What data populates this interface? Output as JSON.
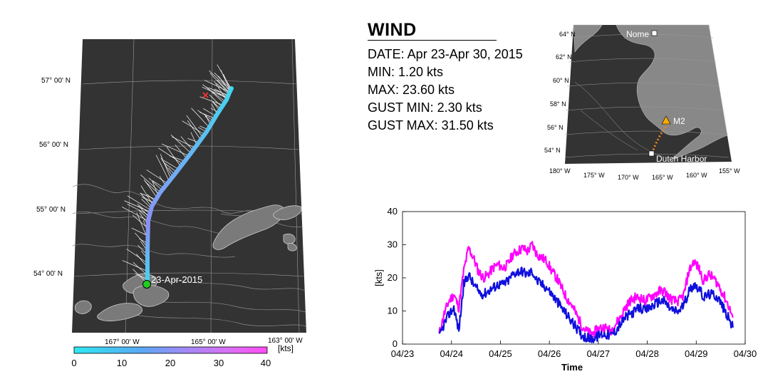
{
  "panel": {
    "title": "WIND",
    "lines": [
      "DATE: Apr 23-Apr 30, 2015",
      "MIN: 1.20 kts",
      "MAX: 23.60 kts",
      "GUST MIN: 2.30 kts",
      "GUST MAX: 31.50 kts"
    ]
  },
  "map": {
    "lat_labels": [
      "57° 00' N",
      "56° 00' N",
      "55° 00' N",
      "54° 00' N"
    ],
    "lon_labels": [
      "167° 00' W",
      "165° 00' W",
      "163° 00' W"
    ],
    "start_label": "23-Apr-2015",
    "colorbar": {
      "ticks": [
        "0",
        "10",
        "20",
        "30",
        "40"
      ],
      "unit": "[kts]",
      "min": 0,
      "max": 40
    },
    "colors": {
      "land": "#7a7a7a",
      "water": "#333333",
      "start_marker": "#22cc22",
      "end_marker": "#ff3333"
    }
  },
  "inset": {
    "lat_labels": [
      "64° N",
      "62° N",
      "60° N",
      "58° N",
      "56° N",
      "54° N"
    ],
    "lon_labels": [
      "180° W",
      "175° W",
      "170° W",
      "165° W",
      "160° W",
      "155° W"
    ],
    "places": {
      "nome": "Nome",
      "m2": "M2",
      "dutch": "Dutch Harbor"
    },
    "colors": {
      "land": "#888888",
      "water": "#333333",
      "track": "#e8821e",
      "m2_marker": "#ffaa00"
    }
  },
  "chart_data": {
    "type": "line",
    "xlabel": "Time",
    "ylabel": "[kts]",
    "x_ticks": [
      "04/23",
      "04/24",
      "04/25",
      "04/26",
      "04/27",
      "04/28",
      "04/29",
      "04/30"
    ],
    "y_ticks": [
      "0",
      "10",
      "20",
      "30",
      "40"
    ],
    "xlim": [
      0,
      7
    ],
    "ylim": [
      0,
      40
    ],
    "series": [
      {
        "color": "#ff00ff",
        "x": [
          0.75,
          0.85,
          0.95,
          1.05,
          1.15,
          1.25,
          1.35,
          1.45,
          1.55,
          1.65,
          1.75,
          1.85,
          1.95,
          2.05,
          2.15,
          2.25,
          2.35,
          2.45,
          2.55,
          2.65,
          2.75,
          2.85,
          2.95,
          3.05,
          3.15,
          3.25,
          3.35,
          3.45,
          3.55,
          3.65,
          3.75,
          3.85,
          3.95,
          4.05,
          4.15,
          4.25,
          4.35,
          4.45,
          4.55,
          4.65,
          4.75,
          4.85,
          4.95,
          5.05,
          5.15,
          5.25,
          5.35,
          5.45,
          5.55,
          5.65,
          5.75,
          5.85,
          5.95,
          6.05,
          6.15,
          6.25,
          6.35,
          6.45,
          6.55,
          6.65,
          6.75
        ],
        "values": [
          3,
          9,
          13,
          15,
          11,
          22,
          29,
          26,
          22,
          20,
          21,
          23,
          24,
          23,
          24,
          27,
          28,
          29,
          28,
          30,
          27,
          26,
          25,
          22,
          20,
          17,
          14,
          12,
          9,
          6,
          4,
          3,
          4,
          5,
          5,
          4,
          6,
          8,
          11,
          13,
          14,
          14,
          13,
          14,
          15,
          16,
          16,
          14,
          13,
          13,
          15,
          22,
          25,
          23,
          19,
          21,
          20,
          18,
          15,
          12,
          8
        ]
      },
      {
        "color": "#1010dd",
        "x": [
          0.75,
          0.85,
          0.95,
          1.05,
          1.15,
          1.25,
          1.35,
          1.45,
          1.55,
          1.65,
          1.75,
          1.85,
          1.95,
          2.05,
          2.15,
          2.25,
          2.35,
          2.45,
          2.55,
          2.65,
          2.75,
          2.85,
          2.95,
          3.05,
          3.15,
          3.25,
          3.35,
          3.45,
          3.55,
          3.65,
          3.75,
          3.85,
          3.95,
          4.05,
          4.15,
          4.25,
          4.35,
          4.45,
          4.55,
          4.65,
          4.75,
          4.85,
          4.95,
          5.05,
          5.15,
          5.25,
          5.35,
          5.45,
          5.55,
          5.65,
          5.75,
          5.85,
          5.95,
          6.05,
          6.15,
          6.25,
          6.35,
          6.45,
          6.55,
          6.65,
          6.75
        ],
        "values": [
          2,
          6,
          9,
          11,
          4,
          18,
          21,
          18,
          16,
          15,
          16,
          17,
          18,
          18,
          19,
          21,
          22,
          22,
          21,
          22,
          19,
          18,
          17,
          15,
          13,
          11,
          9,
          7,
          5,
          3,
          2,
          1.5,
          2,
          3,
          3,
          2.5,
          4,
          6,
          8,
          9,
          10,
          11,
          10,
          11,
          12,
          13,
          13,
          11,
          10,
          10,
          12,
          16,
          18,
          17,
          14,
          15,
          15,
          14,
          11,
          8,
          5
        ]
      }
    ]
  }
}
